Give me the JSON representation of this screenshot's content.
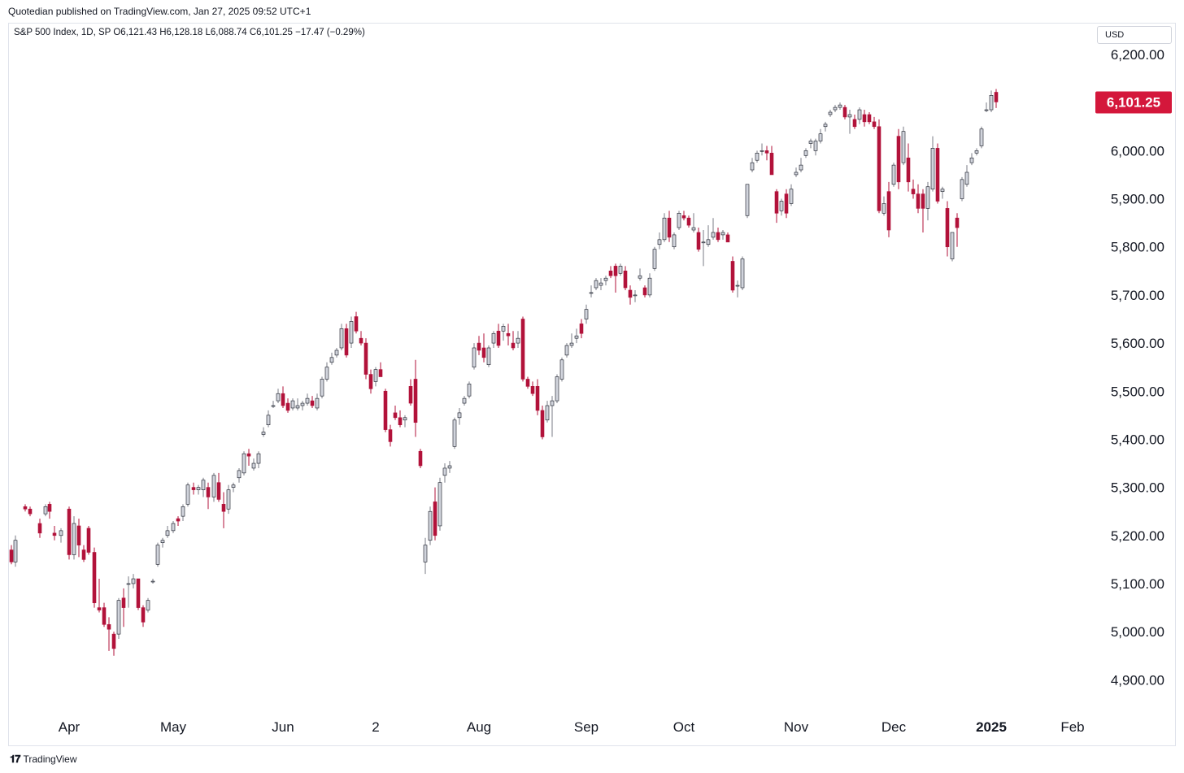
{
  "header": {
    "publisher_line": "Quotedian published on TradingView.com, Jan 27, 2025 09:52 UTC+1"
  },
  "legend": {
    "text": "S&P 500 Index, 1D, SP  O6,121.43  H6,128.18  L6,088.74  C6,101.25  −17.47 (−0.29%)"
  },
  "currency": "USD",
  "footer": {
    "brand": "TradingView",
    "logo_glyph": "𝟏𝟕"
  },
  "colors": {
    "up": "#d1d4dc",
    "down": "#b2123a",
    "wick_up": "#787b86",
    "wick_down": "#b2123a",
    "price_label_bg": "#d4173b"
  },
  "chart_data": {
    "type": "candlestick",
    "ylim": [
      4850,
      6250
    ],
    "y_ticks": [
      "6,200.00",
      "6,100.00",
      "6,000.00",
      "5,900.00",
      "5,800.00",
      "5,700.00",
      "5,600.00",
      "5,500.00",
      "5,400.00",
      "5,300.00",
      "5,200.00",
      "5,100.00",
      "5,000.00",
      "4,900.00"
    ],
    "y_tick_values": [
      6200,
      6100,
      6000,
      5900,
      5800,
      5700,
      5600,
      5500,
      5400,
      5300,
      5200,
      5100,
      5000,
      4900
    ],
    "x_ticks": [
      {
        "label": "Apr",
        "index": 9
      },
      {
        "label": "May",
        "index": 30
      },
      {
        "label": "Jun",
        "index": 52
      },
      {
        "label": "2",
        "index": 71
      },
      {
        "label": "Aug",
        "index": 92
      },
      {
        "label": "Sep",
        "index": 114
      },
      {
        "label": "Oct",
        "index": 134
      },
      {
        "label": "Nov",
        "index": 157
      },
      {
        "label": "Dec",
        "index": 177
      },
      {
        "label": "2025",
        "index": 197
      },
      {
        "label": "Feb",
        "index": 217
      }
    ],
    "last_price_label": "6,101.25",
    "last_price": 6101.25,
    "candles": [
      [
        5170,
        5180,
        5140,
        5145
      ],
      [
        5145,
        5200,
        5135,
        5190
      ],
      [
        5260,
        5265,
        5250,
        5255
      ],
      [
        5255,
        5260,
        5240,
        5245
      ],
      [
        5225,
        5235,
        5195,
        5205
      ],
      [
        5245,
        5265,
        5240,
        5260
      ],
      [
        5265,
        5270,
        5235,
        5250
      ],
      [
        5205,
        5220,
        5190,
        5200
      ],
      [
        5200,
        5215,
        5185,
        5210
      ],
      [
        5255,
        5260,
        5150,
        5160
      ],
      [
        5160,
        5240,
        5150,
        5225
      ],
      [
        5220,
        5235,
        5155,
        5180
      ],
      [
        5170,
        5180,
        5145,
        5150
      ],
      [
        5215,
        5220,
        5160,
        5165
      ],
      [
        5165,
        5175,
        5050,
        5060
      ],
      [
        5050,
        5110,
        5040,
        5045
      ],
      [
        5050,
        5060,
        5010,
        5015
      ],
      [
        5015,
        5030,
        4960,
        5005
      ],
      [
        4995,
        5000,
        4950,
        4965
      ],
      [
        4995,
        5070,
        4985,
        5065
      ],
      [
        5070,
        5090,
        5010,
        5050
      ],
      [
        5100,
        5115,
        5050,
        5100
      ],
      [
        5100,
        5120,
        5090,
        5110
      ],
      [
        5110,
        5110,
        5045,
        5050
      ],
      [
        5050,
        5055,
        5010,
        5020
      ],
      [
        5045,
        5070,
        5040,
        5065
      ],
      [
        5105,
        5110,
        5100,
        5105
      ],
      [
        5140,
        5185,
        5135,
        5180
      ],
      [
        5185,
        5195,
        5175,
        5190
      ],
      [
        5200,
        5220,
        5195,
        5210
      ],
      [
        5210,
        5230,
        5205,
        5225
      ],
      [
        5235,
        5240,
        5220,
        5230
      ],
      [
        5240,
        5265,
        5230,
        5260
      ],
      [
        5265,
        5310,
        5260,
        5305
      ],
      [
        5300,
        5310,
        5285,
        5295
      ],
      [
        5295,
        5305,
        5285,
        5300
      ],
      [
        5295,
        5320,
        5280,
        5315
      ],
      [
        5300,
        5310,
        5255,
        5280
      ],
      [
        5280,
        5330,
        5270,
        5325
      ],
      [
        5310,
        5330,
        5270,
        5275
      ],
      [
        5265,
        5290,
        5215,
        5250
      ],
      [
        5255,
        5305,
        5245,
        5295
      ],
      [
        5300,
        5310,
        5290,
        5305
      ],
      [
        5320,
        5340,
        5310,
        5335
      ],
      [
        5330,
        5375,
        5325,
        5370
      ],
      [
        5370,
        5380,
        5345,
        5365
      ],
      [
        5340,
        5360,
        5335,
        5350
      ],
      [
        5350,
        5375,
        5340,
        5370
      ],
      [
        5410,
        5425,
        5405,
        5415
      ],
      [
        5430,
        5460,
        5425,
        5450
      ],
      [
        5470,
        5480,
        5465,
        5470
      ],
      [
        5480,
        5505,
        5475,
        5495
      ],
      [
        5495,
        5510,
        5465,
        5470
      ],
      [
        5475,
        5485,
        5455,
        5460
      ],
      [
        5465,
        5485,
        5460,
        5480
      ],
      [
        5465,
        5485,
        5460,
        5470
      ],
      [
        5470,
        5480,
        5460,
        5475
      ],
      [
        5475,
        5495,
        5470,
        5485
      ],
      [
        5480,
        5490,
        5465,
        5470
      ],
      [
        5465,
        5495,
        5460,
        5485
      ],
      [
        5490,
        5530,
        5485,
        5525
      ],
      [
        5525,
        5560,
        5520,
        5550
      ],
      [
        5560,
        5580,
        5555,
        5570
      ],
      [
        5575,
        5590,
        5570,
        5585
      ],
      [
        5590,
        5640,
        5585,
        5630
      ],
      [
        5630,
        5640,
        5570,
        5575
      ],
      [
        5600,
        5655,
        5590,
        5645
      ],
      [
        5655,
        5665,
        5620,
        5625
      ],
      [
        5610,
        5625,
        5595,
        5600
      ],
      [
        5600,
        5610,
        5525,
        5535
      ],
      [
        5535,
        5545,
        5495,
        5505
      ],
      [
        5520,
        5550,
        5510,
        5545
      ],
      [
        5545,
        5560,
        5530,
        5530
      ],
      [
        5500,
        5505,
        5415,
        5420
      ],
      [
        5420,
        5430,
        5385,
        5395
      ],
      [
        5455,
        5470,
        5440,
        5445
      ],
      [
        5445,
        5460,
        5425,
        5430
      ],
      [
        5440,
        5450,
        5425,
        5445
      ],
      [
        5510,
        5525,
        5470,
        5475
      ],
      [
        5525,
        5565,
        5405,
        5435
      ],
      [
        5375,
        5380,
        5340,
        5345
      ],
      [
        5145,
        5195,
        5120,
        5180
      ],
      [
        5190,
        5260,
        5180,
        5250
      ],
      [
        5270,
        5300,
        5190,
        5200
      ],
      [
        5220,
        5320,
        5210,
        5310
      ],
      [
        5325,
        5350,
        5310,
        5340
      ],
      [
        5340,
        5355,
        5330,
        5345
      ],
      [
        5385,
        5445,
        5380,
        5440
      ],
      [
        5445,
        5465,
        5430,
        5455
      ],
      [
        5475,
        5490,
        5470,
        5485
      ],
      [
        5490,
        5520,
        5485,
        5515
      ],
      [
        5550,
        5600,
        5545,
        5590
      ],
      [
        5600,
        5615,
        5575,
        5585
      ],
      [
        5590,
        5620,
        5560,
        5570
      ],
      [
        5555,
        5595,
        5550,
        5590
      ],
      [
        5600,
        5625,
        5590,
        5620
      ],
      [
        5625,
        5640,
        5590,
        5595
      ],
      [
        5625,
        5640,
        5605,
        5635
      ],
      [
        5620,
        5640,
        5595,
        5615
      ],
      [
        5600,
        5625,
        5585,
        5590
      ],
      [
        5600,
        5625,
        5590,
        5610
      ],
      [
        5650,
        5655,
        5520,
        5525
      ],
      [
        5525,
        5530,
        5505,
        5510
      ],
      [
        5510,
        5520,
        5490,
        5495
      ],
      [
        5510,
        5525,
        5450,
        5460
      ],
      [
        5460,
        5470,
        5400,
        5405
      ],
      [
        5440,
        5480,
        5435,
        5470
      ],
      [
        5470,
        5490,
        5405,
        5480
      ],
      [
        5480,
        5535,
        5475,
        5530
      ],
      [
        5525,
        5570,
        5520,
        5565
      ],
      [
        5575,
        5600,
        5570,
        5595
      ],
      [
        5595,
        5620,
        5590,
        5600
      ],
      [
        5610,
        5630,
        5600,
        5615
      ],
      [
        5640,
        5650,
        5610,
        5620
      ],
      [
        5650,
        5680,
        5640,
        5670
      ],
      [
        5705,
        5720,
        5695,
        5705
      ],
      [
        5715,
        5735,
        5710,
        5730
      ],
      [
        5720,
        5735,
        5710,
        5725
      ],
      [
        5730,
        5740,
        5720,
        5735
      ],
      [
        5750,
        5760,
        5735,
        5740
      ],
      [
        5760,
        5765,
        5705,
        5740
      ],
      [
        5745,
        5765,
        5740,
        5760
      ],
      [
        5750,
        5760,
        5710,
        5715
      ],
      [
        5710,
        5720,
        5680,
        5695
      ],
      [
        5700,
        5710,
        5685,
        5700
      ],
      [
        5735,
        5755,
        5730,
        5740
      ],
      [
        5715,
        5720,
        5695,
        5700
      ],
      [
        5700,
        5745,
        5695,
        5735
      ],
      [
        5755,
        5800,
        5750,
        5795
      ],
      [
        5805,
        5830,
        5795,
        5815
      ],
      [
        5815,
        5870,
        5810,
        5860
      ],
      [
        5860,
        5875,
        5810,
        5820
      ],
      [
        5800,
        5830,
        5795,
        5825
      ],
      [
        5840,
        5875,
        5835,
        5870
      ],
      [
        5865,
        5875,
        5855,
        5860
      ],
      [
        5860,
        5865,
        5840,
        5845
      ],
      [
        5835,
        5870,
        5830,
        5840
      ],
      [
        5830,
        5840,
        5790,
        5795
      ],
      [
        5810,
        5835,
        5760,
        5810
      ],
      [
        5805,
        5845,
        5800,
        5815
      ],
      [
        5820,
        5860,
        5815,
        5830
      ],
      [
        5830,
        5840,
        5810,
        5815
      ],
      [
        5825,
        5835,
        5815,
        5830
      ],
      [
        5825,
        5830,
        5810,
        5810
      ],
      [
        5770,
        5780,
        5705,
        5710
      ],
      [
        5720,
        5730,
        5695,
        5720
      ],
      [
        5715,
        5780,
        5710,
        5775
      ],
      [
        5865,
        5930,
        5860,
        5930
      ],
      [
        5960,
        5985,
        5955,
        5975
      ],
      [
        5980,
        6000,
        5975,
        5995
      ],
      [
        6000,
        6015,
        5990,
        6000
      ],
      [
        6000,
        6010,
        5980,
        5995
      ],
      [
        5995,
        6010,
        5950,
        5950
      ],
      [
        5915,
        5920,
        5850,
        5870
      ],
      [
        5875,
        5900,
        5865,
        5895
      ],
      [
        5910,
        5920,
        5860,
        5870
      ],
      [
        5890,
        5930,
        5885,
        5920
      ],
      [
        5950,
        5965,
        5945,
        5955
      ],
      [
        5960,
        5985,
        5955,
        5970
      ],
      [
        5990,
        6005,
        5985,
        6000
      ],
      [
        6015,
        6025,
        6005,
        6020
      ],
      [
        6000,
        6025,
        5990,
        6020
      ],
      [
        6020,
        6045,
        6015,
        6035
      ],
      [
        6050,
        6060,
        6040,
        6055
      ],
      [
        6075,
        6085,
        6070,
        6080
      ],
      [
        6085,
        6095,
        6080,
        6090
      ],
      [
        6090,
        6100,
        6085,
        6095
      ],
      [
        6090,
        6095,
        6065,
        6070
      ],
      [
        6070,
        6085,
        6035,
        6075
      ],
      [
        6065,
        6075,
        6045,
        6050
      ],
      [
        6065,
        6090,
        6055,
        6085
      ],
      [
        6075,
        6085,
        6050,
        6060
      ],
      [
        6075,
        6080,
        6055,
        6060
      ],
      [
        6060,
        6070,
        6045,
        6050
      ],
      [
        6050,
        6065,
        5870,
        5875
      ],
      [
        5870,
        5905,
        5865,
        5890
      ],
      [
        5915,
        5935,
        5820,
        5835
      ],
      [
        5930,
        5975,
        5925,
        5970
      ],
      [
        6030,
        6045,
        5920,
        5935
      ],
      [
        5975,
        6050,
        5970,
        6040
      ],
      [
        5985,
        6015,
        5915,
        5935
      ],
      [
        5920,
        5940,
        5900,
        5910
      ],
      [
        5910,
        5930,
        5870,
        5880
      ],
      [
        5910,
        5920,
        5830,
        5880
      ],
      [
        5880,
        5935,
        5855,
        5925
      ],
      [
        5920,
        6030,
        5915,
        6005
      ],
      [
        6005,
        6015,
        5890,
        5895
      ],
      [
        5915,
        5925,
        5900,
        5920
      ],
      [
        5880,
        5895,
        5780,
        5800
      ],
      [
        5775,
        5830,
        5770,
        5830
      ],
      [
        5860,
        5870,
        5800,
        5840
      ],
      [
        5900,
        5945,
        5895,
        5940
      ],
      [
        5930,
        5970,
        5925,
        5955
      ],
      [
        5975,
        5995,
        5970,
        5985
      ],
      [
        5995,
        6005,
        5990,
        6000
      ],
      [
        6010,
        6050,
        6005,
        6045
      ],
      [
        6085,
        6100,
        6080,
        6085
      ],
      [
        6085,
        6125,
        6080,
        6115
      ],
      [
        6121.43,
        6128.18,
        6088.74,
        6101.25
      ]
    ],
    "candle_x_positions": [
      14,
      19,
      31,
      37,
      49,
      56,
      61,
      67,
      75,
      85,
      91,
      97,
      103,
      109,
      116,
      122,
      128,
      134,
      140,
      146,
      152,
      158,
      164,
      170,
      176,
      182,
      188,
      194,
      200,
      206,
      213,
      219,
      225,
      231,
      238,
      244,
      250,
      256,
      263,
      269,
      275,
      281,
      287,
      294,
      300,
      306,
      312,
      318,
      324,
      330,
      336,
      342,
      348,
      354,
      360,
      366,
      372,
      378,
      384,
      390,
      396,
      402,
      408,
      414,
      420,
      426,
      432,
      438,
      444,
      450,
      456,
      462,
      468,
      474,
      480,
      486,
      492,
      498,
      505,
      511,
      517,
      523,
      529,
      535,
      541,
      547,
      553,
      559,
      565,
      571,
      577,
      583,
      589,
      595,
      601,
      607,
      613,
      619,
      625,
      631,
      637,
      643,
      649,
      655,
      661,
      667,
      673,
      679,
      685,
      691,
      697,
      703,
      709,
      715,
      721,
      727,
      733,
      739,
      745,
      751,
      757,
      763,
      769,
      775,
      781,
      787,
      793,
      799,
      805,
      811,
      817,
      823,
      829,
      835,
      841,
      847,
      853,
      859,
      865,
      871,
      877,
      883,
      889,
      895,
      901,
      907,
      913,
      919,
      925,
      931,
      937,
      943,
      949,
      955,
      961,
      967,
      973,
      979,
      985,
      991,
      997,
      1003,
      1009,
      1015,
      1021,
      1027,
      1033,
      1039,
      1045,
      1051,
      1057,
      1063,
      1069,
      1075,
      1081,
      1087,
      1093,
      1099,
      1105,
      1111,
      1117,
      1123,
      1129,
      1135,
      1141,
      1147,
      1153,
      1159,
      1165,
      1171,
      1177,
      1183,
      1189,
      1195,
      1201,
      1207,
      1213,
      1219,
      1225,
      1231,
      1237,
      1243,
      1249,
      1255,
      1261,
      1267,
      1273,
      1279,
      1283
    ]
  }
}
